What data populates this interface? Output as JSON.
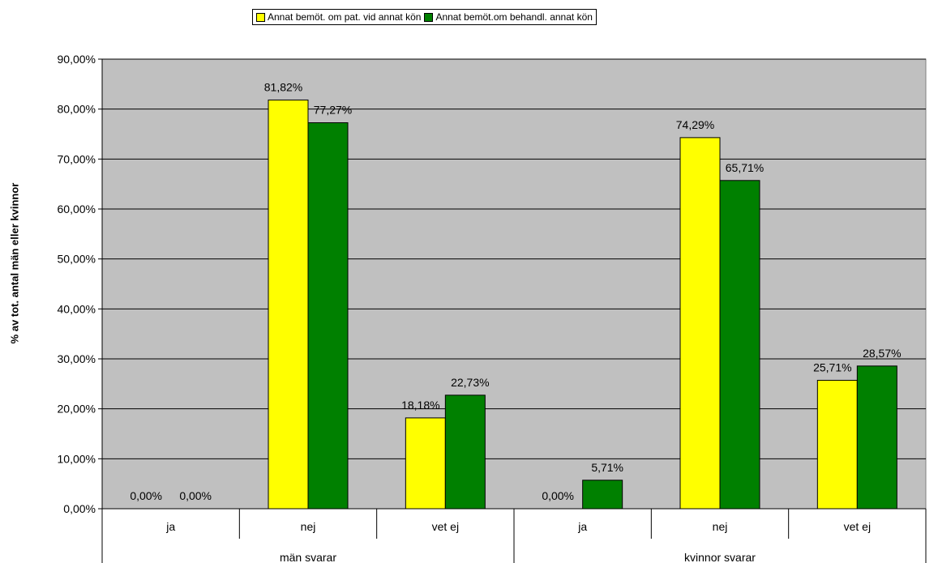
{
  "chart_data": {
    "type": "bar",
    "title": "",
    "ylabel": "% av tot. antal män eller kvinnor",
    "xlabel": "",
    "ylim": [
      0,
      90
    ],
    "yticks": [
      "0,00%",
      "10,00%",
      "20,00%",
      "30,00%",
      "40,00%",
      "50,00%",
      "60,00%",
      "70,00%",
      "80,00%",
      "90,00%"
    ],
    "grid": true,
    "legend_position": "top",
    "background_color": "#c0c0c0",
    "groups": [
      {
        "label": "män svarar",
        "categories": [
          "ja",
          "nej",
          "vet ej"
        ]
      },
      {
        "label": "kvinnor svarar",
        "categories": [
          "ja",
          "nej",
          "vet ej"
        ]
      }
    ],
    "categories": [
      "ja",
      "nej",
      "vet ej",
      "ja",
      "nej",
      "vet ej"
    ],
    "series": [
      {
        "name": "Annat bemöt. om pat. vid annat kön",
        "color": "#ffff00",
        "values": [
          0,
          81.82,
          18.18,
          0,
          74.29,
          25.71
        ],
        "labels": [
          "0,00%",
          "81,82%",
          "18,18%",
          "0,00%",
          "74,29%",
          "25,71%"
        ]
      },
      {
        "name": "Annat bemöt.om behandl. annat kön",
        "color": "#008000",
        "values": [
          0,
          77.27,
          22.73,
          5.71,
          65.71,
          28.57
        ],
        "labels": [
          "0,00%",
          "77,27%",
          "22,73%",
          "5,71%",
          "65,71%",
          "28,57%"
        ]
      }
    ]
  }
}
